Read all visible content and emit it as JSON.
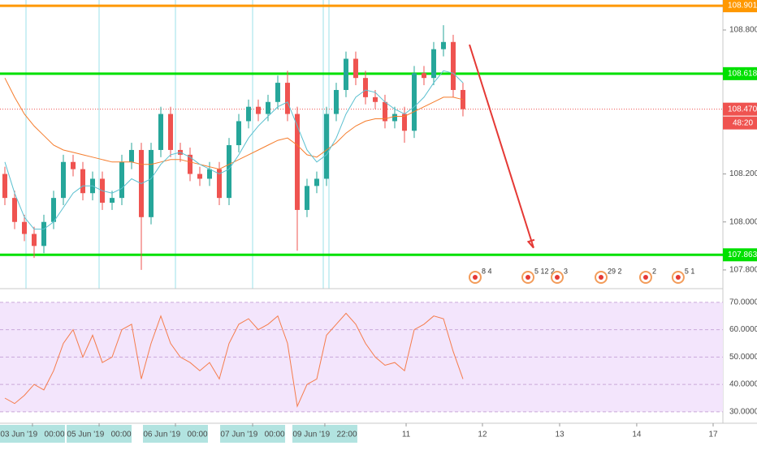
{
  "chart_data": {
    "type": "candlestick",
    "xlim": [
      -0.5,
      73.67
    ],
    "ylim": [
      107.722,
      108.925
    ],
    "yticks": [
      {
        "value": 107.8,
        "label": "107.800"
      },
      {
        "value": 108.0,
        "label": "108.000"
      },
      {
        "value": 108.2,
        "label": "108.200"
      },
      {
        "value": 108.8,
        "label": "108.800"
      }
    ],
    "xticks": [
      {
        "value": 2.83,
        "label": "03 Jun '19   00:00"
      },
      {
        "value": 9.67,
        "label": "05 Jun '19   00:00"
      },
      {
        "value": 17.5,
        "label": "06 Jun '19   00:00"
      },
      {
        "value": 25.42,
        "label": "07 Jun '19   00:00"
      },
      {
        "value": 32.83,
        "label": "09 Jun '19   22:00"
      },
      {
        "value": 41.17,
        "label": "11"
      },
      {
        "value": 49,
        "label": "12"
      },
      {
        "value": 56.92,
        "label": "13"
      },
      {
        "value": 64.83,
        "label": "14"
      },
      {
        "value": 72.67,
        "label": "17"
      }
    ],
    "up_color": "#26a69a",
    "down_color": "#ef5350",
    "open": [
      108.2,
      108.1,
      108.0,
      107.95,
      107.9,
      108.0,
      108.1,
      108.25,
      108.22,
      108.12,
      108.18,
      108.08,
      108.1,
      108.25,
      108.3,
      108.02,
      108.3,
      108.45,
      108.3,
      108.28,
      108.2,
      108.18,
      108.22,
      108.1,
      108.32,
      108.42,
      108.48,
      108.45,
      108.5,
      108.58,
      108.45,
      108.05,
      108.15,
      108.18,
      108.45,
      108.55,
      108.68,
      108.6,
      108.52,
      108.5,
      108.42,
      108.45,
      108.38,
      108.62,
      108.6,
      108.72,
      108.75,
      108.55
    ],
    "high": [
      108.23,
      108.13,
      108.03,
      107.98,
      108.03,
      108.13,
      108.28,
      108.28,
      108.25,
      108.21,
      108.21,
      108.13,
      108.28,
      108.33,
      108.33,
      108.33,
      108.48,
      108.48,
      108.33,
      108.31,
      108.23,
      108.25,
      108.25,
      108.35,
      108.45,
      108.51,
      108.51,
      108.53,
      108.61,
      108.63,
      108.48,
      108.18,
      108.21,
      108.48,
      108.58,
      108.71,
      108.71,
      108.63,
      108.55,
      108.53,
      108.48,
      108.48,
      108.65,
      108.65,
      108.75,
      108.82,
      108.78,
      108.58
    ],
    "low": [
      108.07,
      107.97,
      107.92,
      107.85,
      107.87,
      107.97,
      108.07,
      108.19,
      108.09,
      108.09,
      108.05,
      108.05,
      108.07,
      108.22,
      107.8,
      107.99,
      108.27,
      108.27,
      108.25,
      108.17,
      108.15,
      108.15,
      108.07,
      108.07,
      108.29,
      108.39,
      108.42,
      108.42,
      108.47,
      108.42,
      107.88,
      108.02,
      108.12,
      108.15,
      108.42,
      108.52,
      108.57,
      108.49,
      108.47,
      108.39,
      108.39,
      108.33,
      108.35,
      108.57,
      108.57,
      108.69,
      108.52,
      108.44
    ],
    "close": [
      108.1,
      108.0,
      107.95,
      107.9,
      108.0,
      108.1,
      108.25,
      108.22,
      108.12,
      108.18,
      108.08,
      108.1,
      108.25,
      108.3,
      108.02,
      108.3,
      108.45,
      108.3,
      108.28,
      108.2,
      108.18,
      108.22,
      108.1,
      108.32,
      108.42,
      108.48,
      108.45,
      108.5,
      108.58,
      108.45,
      108.05,
      108.15,
      108.18,
      108.45,
      108.55,
      108.68,
      108.6,
      108.52,
      108.5,
      108.42,
      108.45,
      108.38,
      108.62,
      108.6,
      108.72,
      108.75,
      108.55,
      108.47
    ],
    "series": [
      {
        "color": "#f57c2c",
        "values": [
          108.6,
          108.52,
          108.45,
          108.4,
          108.36,
          108.32,
          108.3,
          108.29,
          108.28,
          108.27,
          108.26,
          108.25,
          108.25,
          108.25,
          108.24,
          108.24,
          108.25,
          108.26,
          108.26,
          108.25,
          108.24,
          108.23,
          108.22,
          108.24,
          108.26,
          108.28,
          108.3,
          108.32,
          108.34,
          108.35,
          108.32,
          108.28,
          108.27,
          108.3,
          108.33,
          108.37,
          108.4,
          108.42,
          108.43,
          108.43,
          108.44,
          108.44,
          108.46,
          108.48,
          108.5,
          108.52,
          108.52,
          108.51
        ]
      },
      {
        "color": "#5bc0d0",
        "values": [
          108.25,
          108.12,
          108.02,
          107.97,
          107.97,
          108.0,
          108.06,
          108.12,
          108.15,
          108.15,
          108.13,
          108.12,
          108.14,
          108.18,
          108.16,
          108.18,
          108.24,
          108.28,
          108.29,
          108.27,
          108.24,
          108.22,
          108.2,
          108.22,
          108.28,
          108.35,
          108.4,
          108.44,
          108.48,
          108.5,
          108.4,
          108.3,
          108.25,
          108.28,
          108.35,
          108.45,
          108.52,
          108.55,
          108.54,
          108.5,
          108.47,
          108.45,
          108.48,
          108.52,
          108.58,
          108.63,
          108.62,
          108.58
        ]
      }
    ],
    "levels": [
      {
        "value": 108.901,
        "color": "#ff9800"
      },
      {
        "value": 108.618,
        "color": "#00e000"
      },
      {
        "value": 108.47,
        "label": "108.470",
        "color": "#ef5350",
        "dotted": true
      },
      {
        "value": 107.863,
        "color": "#00e000"
      }
    ],
    "countdown": "48:20",
    "arrow": {
      "from": [
        47.67,
        108.739
      ],
      "to": [
        54.25,
        107.892
      ],
      "color": "#e53935"
    },
    "events": [
      {
        "at": 48.25,
        "label": "8 4"
      },
      {
        "at": 53.67,
        "label": "5 12 2"
      },
      {
        "at": 56.67,
        "label": "3"
      },
      {
        "at": 61.17,
        "label": "29 2"
      },
      {
        "at": 65.75,
        "label": "2"
      },
      {
        "at": 69.08,
        "label": "5 1"
      }
    ],
    "rsi": {
      "color": "#f57c4c",
      "ylim": [
        26.4,
        74.7
      ],
      "band": [
        30,
        70
      ],
      "yticks": [
        {
          "value": 30,
          "label": "30.0000"
        },
        {
          "value": 40,
          "label": "40.0000"
        },
        {
          "value": 50,
          "label": "50.0000"
        },
        {
          "value": 60,
          "label": "60.0000"
        },
        {
          "value": 70,
          "label": "70.0000"
        }
      ],
      "values": [
        35,
        33,
        36,
        40,
        38,
        45,
        55,
        60,
        50,
        58,
        48,
        50,
        60,
        62,
        42,
        55,
        65,
        55,
        50,
        48,
        45,
        48,
        42,
        55,
        62,
        64,
        60,
        62,
        65,
        55,
        32,
        40,
        42,
        58,
        62,
        66,
        62,
        55,
        50,
        47,
        48,
        45,
        60,
        62,
        65,
        64,
        52,
        42
      ]
    }
  }
}
